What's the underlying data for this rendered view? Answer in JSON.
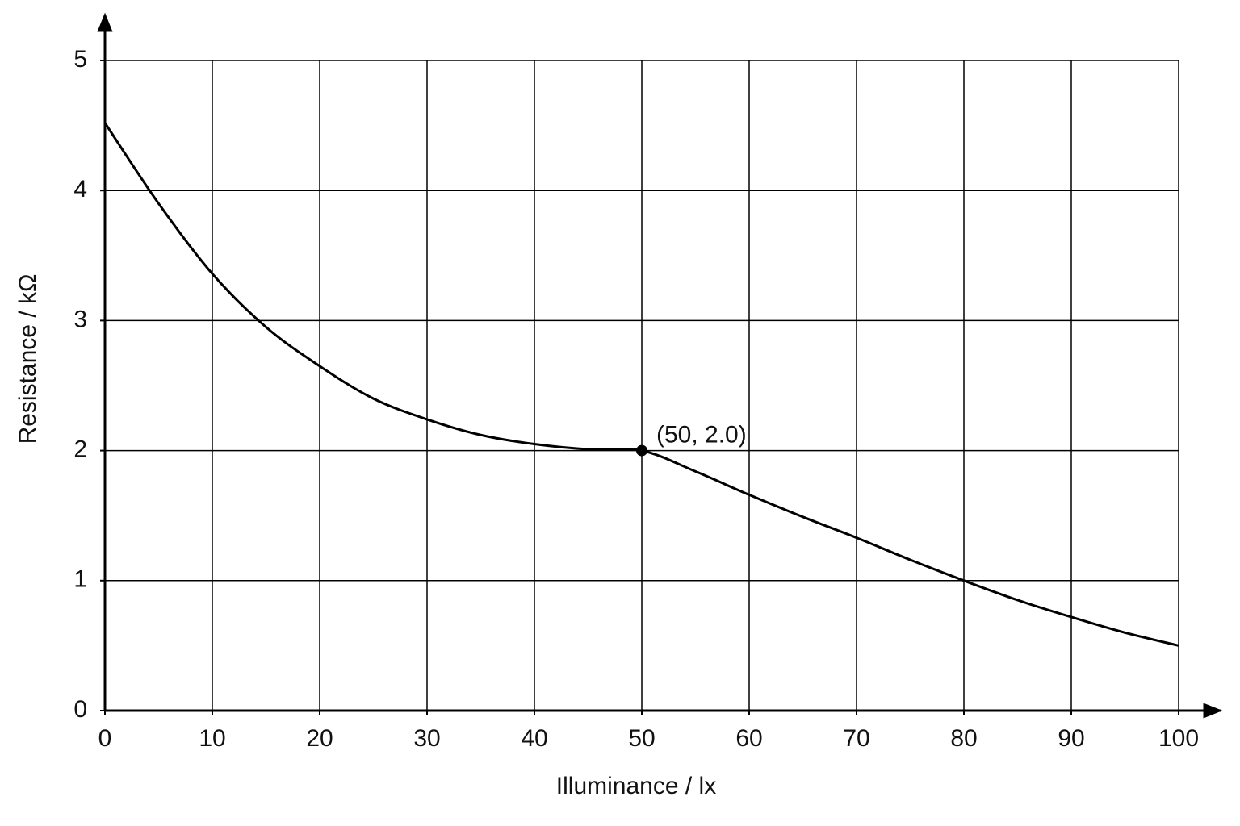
{
  "chart_data": {
    "type": "line",
    "xlabel": "Illuminance / lx",
    "ylabel": "Resistance / kΩ",
    "x": [
      0,
      5,
      10,
      15,
      20,
      25,
      30,
      35,
      40,
      45,
      50,
      55,
      60,
      65,
      70,
      75,
      80,
      85,
      90,
      95,
      100
    ],
    "series": [
      {
        "color": "#000000",
        "values": [
          4.52,
          3.9,
          3.36,
          2.95,
          2.65,
          2.4,
          2.24,
          2.12,
          2.05,
          2.01,
          2.0,
          1.84,
          1.66,
          1.49,
          1.33,
          1.16,
          1.0,
          0.85,
          0.72,
          0.6,
          0.5
        ]
      }
    ],
    "annotation": {
      "text": "(50, 2.0)",
      "x": 50,
      "y": 2.0
    },
    "xlim": [
      0,
      100
    ],
    "xticks": [
      0,
      10,
      20,
      30,
      40,
      50,
      60,
      70,
      80,
      90,
      100
    ],
    "ylim": [
      0,
      5
    ],
    "yticks": [
      0,
      1,
      2,
      3,
      4,
      5
    ],
    "grid": true
  }
}
